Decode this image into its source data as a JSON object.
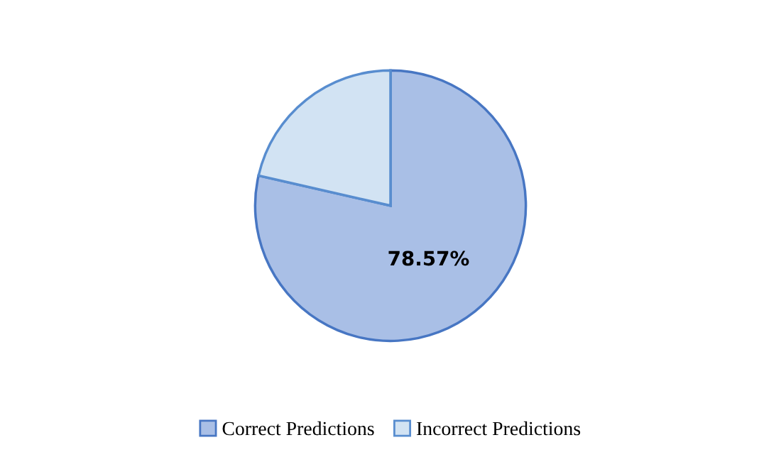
{
  "chart_data": {
    "type": "pie",
    "categories": [
      "Correct Predictions",
      "Incorrect Predictions"
    ],
    "values": [
      78.57,
      21.43
    ],
    "colors": [
      "#a9bfe6",
      "#d2e3f3"
    ],
    "value_labels": [
      "78.57%",
      null
    ],
    "legend": "bottom"
  }
}
